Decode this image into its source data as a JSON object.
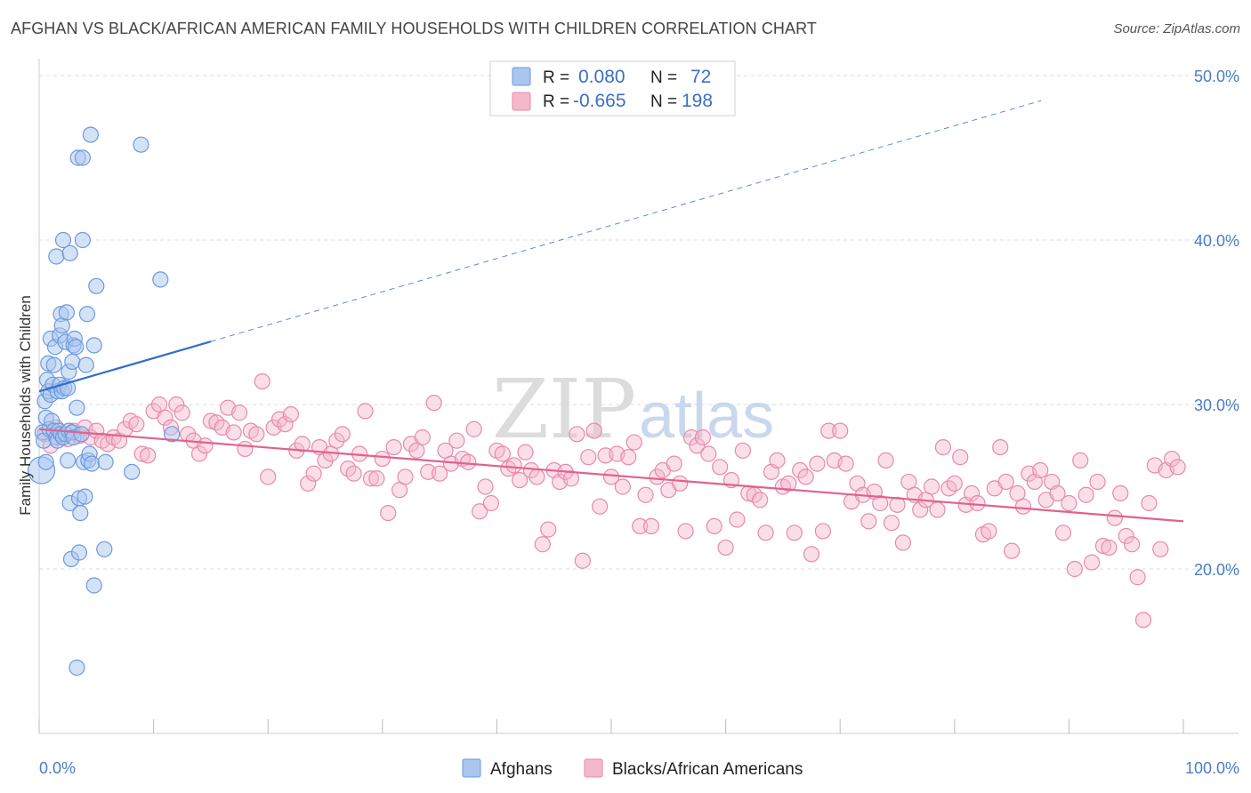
{
  "title": "AFGHAN VS BLACK/AFRICAN AMERICAN FAMILY HOUSEHOLDS WITH CHILDREN CORRELATION CHART",
  "source": "Source: ZipAtlas.com",
  "watermark": {
    "zip": "ZIP",
    "atlas": "atlas"
  },
  "colors": {
    "afghans_fill": "#a9c6ee",
    "afghans_stroke": "#6b9ae0",
    "afghans_line": "#2f6fcc",
    "black_fill": "#f5b8cb",
    "black_stroke": "#e78aa8",
    "black_line": "#e0628f",
    "grid": "#dddddd",
    "tick_text": "#4a7cc7"
  },
  "legend_box": {
    "rows": [
      {
        "r_label": "R =",
        "r_value": "0.080",
        "n_label": "N =",
        "n_value": "72"
      },
      {
        "r_label": "R =",
        "r_value": "-0.665",
        "n_label": "N =",
        "n_value": "198"
      }
    ]
  },
  "chart_data": {
    "type": "scatter",
    "title": "AFGHAN VS BLACK/AFRICAN AMERICAN FAMILY HOUSEHOLDS WITH CHILDREN CORRELATION CHART",
    "xlabel": "",
    "ylabel": "Family Households with Children",
    "xlim": [
      0,
      100
    ],
    "ylim": [
      10,
      52
    ],
    "x_tick_labels": [
      {
        "value": 0,
        "label": "0.0%"
      },
      {
        "value": 100,
        "label": "100.0%"
      }
    ],
    "y_tick_labels": [
      {
        "value": 20,
        "label": "20.0%"
      },
      {
        "value": 30,
        "label": "30.0%"
      },
      {
        "value": 40,
        "label": "40.0%"
      },
      {
        "value": 50,
        "label": "50.0%"
      }
    ],
    "grid": "horizontal dashed",
    "legend_placement": "bottom-center",
    "series": [
      {
        "name": "Afghans",
        "trend": {
          "x0": 0,
          "y0": 30.8,
          "x1": 100,
          "y1": 51.0,
          "solid_until": 15
        },
        "points": [
          [
            0.2,
            26.0
          ],
          [
            0.3,
            28.3
          ],
          [
            0.5,
            30.2
          ],
          [
            0.4,
            27.8
          ],
          [
            0.6,
            26.5
          ],
          [
            0.6,
            29.2
          ],
          [
            0.7,
            31.5
          ],
          [
            0.8,
            32.5
          ],
          [
            0.8,
            30.8
          ],
          [
            0.9,
            28.5
          ],
          [
            1.0,
            30.6
          ],
          [
            1.0,
            34.0
          ],
          [
            1.1,
            29.0
          ],
          [
            1.2,
            31.2
          ],
          [
            1.3,
            28.4
          ],
          [
            1.3,
            32.4
          ],
          [
            1.4,
            33.5
          ],
          [
            1.5,
            39.0
          ],
          [
            1.5,
            28.0
          ],
          [
            1.6,
            30.8
          ],
          [
            1.6,
            27.8
          ],
          [
            1.7,
            28.4
          ],
          [
            1.8,
            31.2
          ],
          [
            1.8,
            34.2
          ],
          [
            1.9,
            35.5
          ],
          [
            1.9,
            28.2
          ],
          [
            2.0,
            30.8
          ],
          [
            2.0,
            34.8
          ],
          [
            2.1,
            28.0
          ],
          [
            2.1,
            40.0
          ],
          [
            2.2,
            31.0
          ],
          [
            2.3,
            28.2
          ],
          [
            2.3,
            33.8
          ],
          [
            2.4,
            35.6
          ],
          [
            2.5,
            31.0
          ],
          [
            2.5,
            26.6
          ],
          [
            2.6,
            28.4
          ],
          [
            2.6,
            32.0
          ],
          [
            2.7,
            24.0
          ],
          [
            2.7,
            39.2
          ],
          [
            2.8,
            20.6
          ],
          [
            2.9,
            28.3
          ],
          [
            2.9,
            32.6
          ],
          [
            3.0,
            33.6
          ],
          [
            3.0,
            28.0
          ],
          [
            3.1,
            34.0
          ],
          [
            3.2,
            33.5
          ],
          [
            3.3,
            29.8
          ],
          [
            3.3,
            14.0
          ],
          [
            3.4,
            45.0
          ],
          [
            3.5,
            21.0
          ],
          [
            3.5,
            24.3
          ],
          [
            3.6,
            23.4
          ],
          [
            3.7,
            28.2
          ],
          [
            3.8,
            45.0
          ],
          [
            3.8,
            40.0
          ],
          [
            3.9,
            26.5
          ],
          [
            4.0,
            24.4
          ],
          [
            4.1,
            32.4
          ],
          [
            4.2,
            35.5
          ],
          [
            4.3,
            26.6
          ],
          [
            4.4,
            27.0
          ],
          [
            4.5,
            46.4
          ],
          [
            4.6,
            26.4
          ],
          [
            4.8,
            19.0
          ],
          [
            4.8,
            33.6
          ],
          [
            5.0,
            37.2
          ],
          [
            5.7,
            21.2
          ],
          [
            5.8,
            26.5
          ],
          [
            8.1,
            25.9
          ],
          [
            8.9,
            45.8
          ],
          [
            10.6,
            37.6
          ],
          [
            11.6,
            28.2
          ]
        ]
      },
      {
        "name": "Blacks/African Americans",
        "trend": {
          "x0": 0,
          "y0": 28.5,
          "x1": 100,
          "y1": 22.9
        },
        "points": [
          [
            0.5,
            28.2
          ],
          [
            1.0,
            27.5
          ],
          [
            1.5,
            28.6
          ],
          [
            2.0,
            28.0
          ],
          [
            2.5,
            27.9
          ],
          [
            3.0,
            28.4
          ],
          [
            3.5,
            28.1
          ],
          [
            4.0,
            28.6
          ],
          [
            4.5,
            28.0
          ],
          [
            5.0,
            28.4
          ],
          [
            5.5,
            27.8
          ],
          [
            6.0,
            27.6
          ],
          [
            6.5,
            28.0
          ],
          [
            7.0,
            27.8
          ],
          [
            7.5,
            28.5
          ],
          [
            8.0,
            29.0
          ],
          [
            8.5,
            28.8
          ],
          [
            9.0,
            27.0
          ],
          [
            9.5,
            26.9
          ],
          [
            10.0,
            29.6
          ],
          [
            10.5,
            30.0
          ],
          [
            11.0,
            29.2
          ],
          [
            11.5,
            28.6
          ],
          [
            12.0,
            30.0
          ],
          [
            12.5,
            29.5
          ],
          [
            13.0,
            28.2
          ],
          [
            13.5,
            27.8
          ],
          [
            14.0,
            27.0
          ],
          [
            14.5,
            27.5
          ],
          [
            15.0,
            29.0
          ],
          [
            15.5,
            28.9
          ],
          [
            16.0,
            28.6
          ],
          [
            16.5,
            29.8
          ],
          [
            17.0,
            28.3
          ],
          [
            17.5,
            29.5
          ],
          [
            18.0,
            27.3
          ],
          [
            18.5,
            28.4
          ],
          [
            19.0,
            28.2
          ],
          [
            19.5,
            31.4
          ],
          [
            20.0,
            25.6
          ],
          [
            20.5,
            28.6
          ],
          [
            21.0,
            29.1
          ],
          [
            21.5,
            28.8
          ],
          [
            22.0,
            29.4
          ],
          [
            22.5,
            27.2
          ],
          [
            23.0,
            27.6
          ],
          [
            23.5,
            25.2
          ],
          [
            24.0,
            25.8
          ],
          [
            24.5,
            27.4
          ],
          [
            25.0,
            26.6
          ],
          [
            25.5,
            27.0
          ],
          [
            26.0,
            27.8
          ],
          [
            26.5,
            28.2
          ],
          [
            27.0,
            26.1
          ],
          [
            27.5,
            25.8
          ],
          [
            28.0,
            27.0
          ],
          [
            28.5,
            29.6
          ],
          [
            29.0,
            25.5
          ],
          [
            29.5,
            25.5
          ],
          [
            30.0,
            26.7
          ],
          [
            30.5,
            23.4
          ],
          [
            31.0,
            27.4
          ],
          [
            31.5,
            24.8
          ],
          [
            32.0,
            25.6
          ],
          [
            32.5,
            27.6
          ],
          [
            33.0,
            27.2
          ],
          [
            33.5,
            28.0
          ],
          [
            34.0,
            25.9
          ],
          [
            34.5,
            30.1
          ],
          [
            35.0,
            25.8
          ],
          [
            35.5,
            27.2
          ],
          [
            36.0,
            26.4
          ],
          [
            36.5,
            27.8
          ],
          [
            37.0,
            26.7
          ],
          [
            37.5,
            26.5
          ],
          [
            38.0,
            28.5
          ],
          [
            38.5,
            23.5
          ],
          [
            39.0,
            25.0
          ],
          [
            39.5,
            24.0
          ],
          [
            40.0,
            27.2
          ],
          [
            40.5,
            27.0
          ],
          [
            41.0,
            26.1
          ],
          [
            41.5,
            26.3
          ],
          [
            42.0,
            25.4
          ],
          [
            42.5,
            27.1
          ],
          [
            43.0,
            26.0
          ],
          [
            43.5,
            25.6
          ],
          [
            44.0,
            21.5
          ],
          [
            44.5,
            22.4
          ],
          [
            45.0,
            26.0
          ],
          [
            45.5,
            25.3
          ],
          [
            46.0,
            25.9
          ],
          [
            46.5,
            25.5
          ],
          [
            47.0,
            28.2
          ],
          [
            47.5,
            20.5
          ],
          [
            48.0,
            26.8
          ],
          [
            48.5,
            28.4
          ],
          [
            49.0,
            23.8
          ],
          [
            49.5,
            26.9
          ],
          [
            50.0,
            25.6
          ],
          [
            50.5,
            27.0
          ],
          [
            51.0,
            25.0
          ],
          [
            51.5,
            26.8
          ],
          [
            52.0,
            27.7
          ],
          [
            52.5,
            22.6
          ],
          [
            53.0,
            24.5
          ],
          [
            53.5,
            22.6
          ],
          [
            54.0,
            25.6
          ],
          [
            54.5,
            26.0
          ],
          [
            55.0,
            24.8
          ],
          [
            55.5,
            26.4
          ],
          [
            56.0,
            25.2
          ],
          [
            56.5,
            22.3
          ],
          [
            57.0,
            28.0
          ],
          [
            57.5,
            27.5
          ],
          [
            58.0,
            28.0
          ],
          [
            58.5,
            27.0
          ],
          [
            59.0,
            22.6
          ],
          [
            59.5,
            26.2
          ],
          [
            60.0,
            21.3
          ],
          [
            60.5,
            25.4
          ],
          [
            61.0,
            23.0
          ],
          [
            61.5,
            27.2
          ],
          [
            62.0,
            24.6
          ],
          [
            62.5,
            24.5
          ],
          [
            63.0,
            24.2
          ],
          [
            63.5,
            22.2
          ],
          [
            64.0,
            25.9
          ],
          [
            64.5,
            26.6
          ],
          [
            65.0,
            25.0
          ],
          [
            65.5,
            25.2
          ],
          [
            66.0,
            22.2
          ],
          [
            66.5,
            26.0
          ],
          [
            67.0,
            25.6
          ],
          [
            67.5,
            20.9
          ],
          [
            68.0,
            26.4
          ],
          [
            68.5,
            22.3
          ],
          [
            69.0,
            28.4
          ],
          [
            69.5,
            26.6
          ],
          [
            70.0,
            28.4
          ],
          [
            70.5,
            26.4
          ],
          [
            71.0,
            24.1
          ],
          [
            71.5,
            25.2
          ],
          [
            72.0,
            24.5
          ],
          [
            72.5,
            22.9
          ],
          [
            73.0,
            24.7
          ],
          [
            73.5,
            24.0
          ],
          [
            74.0,
            26.6
          ],
          [
            74.5,
            22.8
          ],
          [
            75.0,
            23.9
          ],
          [
            75.5,
            21.6
          ],
          [
            76.0,
            25.3
          ],
          [
            76.5,
            24.5
          ],
          [
            77.0,
            23.6
          ],
          [
            77.5,
            24.2
          ],
          [
            78.0,
            25.0
          ],
          [
            78.5,
            23.6
          ],
          [
            79.0,
            27.4
          ],
          [
            79.5,
            24.9
          ],
          [
            80.0,
            25.2
          ],
          [
            80.5,
            26.8
          ],
          [
            81.0,
            23.9
          ],
          [
            81.5,
            24.6
          ],
          [
            82.0,
            24.0
          ],
          [
            82.5,
            22.1
          ],
          [
            83.0,
            22.3
          ],
          [
            83.5,
            24.9
          ],
          [
            84.0,
            27.4
          ],
          [
            84.5,
            25.3
          ],
          [
            85.0,
            21.1
          ],
          [
            85.5,
            24.6
          ],
          [
            86.0,
            23.8
          ],
          [
            86.5,
            25.8
          ],
          [
            87.0,
            25.3
          ],
          [
            87.5,
            26.0
          ],
          [
            88.0,
            24.2
          ],
          [
            88.5,
            25.3
          ],
          [
            89.0,
            24.6
          ],
          [
            89.5,
            22.2
          ],
          [
            90.0,
            24.0
          ],
          [
            90.5,
            20.0
          ],
          [
            91.0,
            26.6
          ],
          [
            91.5,
            24.5
          ],
          [
            92.0,
            20.4
          ],
          [
            92.5,
            25.3
          ],
          [
            93.0,
            21.4
          ],
          [
            93.5,
            21.3
          ],
          [
            94.0,
            23.1
          ],
          [
            94.5,
            24.6
          ],
          [
            95.0,
            22.0
          ],
          [
            95.5,
            21.5
          ],
          [
            96.0,
            19.5
          ],
          [
            96.5,
            16.9
          ],
          [
            97.0,
            24.0
          ],
          [
            97.5,
            26.3
          ],
          [
            98.0,
            21.2
          ],
          [
            98.5,
            26.0
          ],
          [
            99.0,
            26.7
          ],
          [
            99.5,
            26.2
          ]
        ]
      }
    ]
  }
}
